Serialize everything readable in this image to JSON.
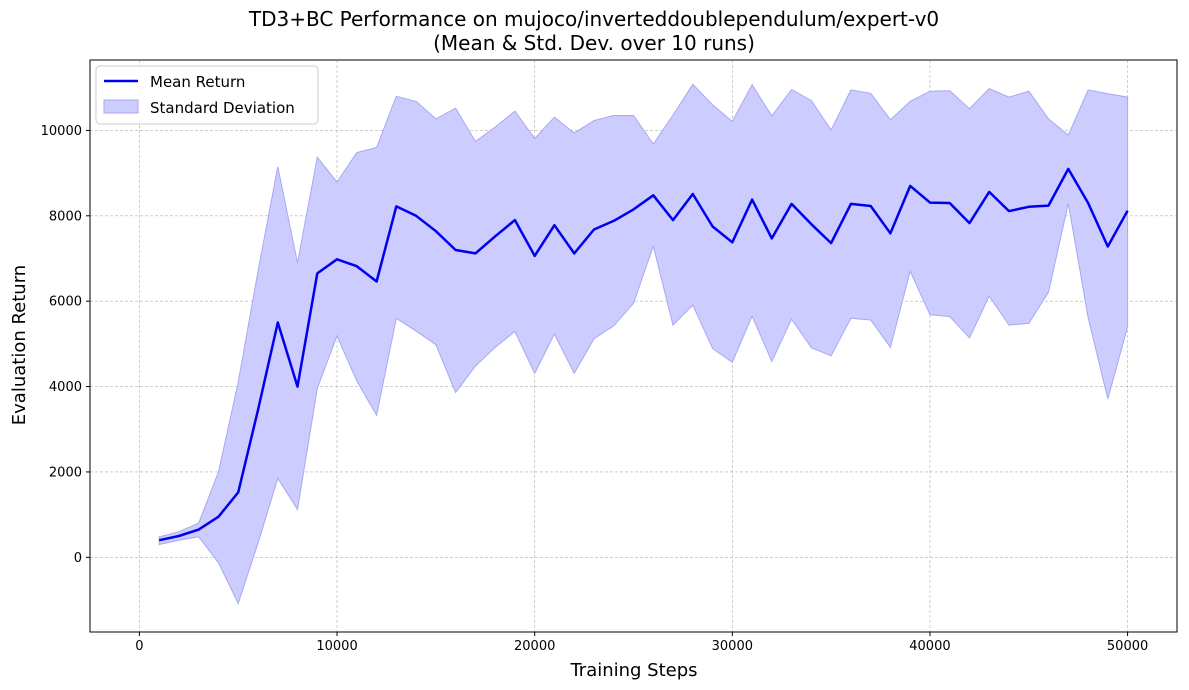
{
  "chart_data": {
    "type": "line",
    "title": "TD3+BC Performance on mujoco/inverteddoublependulum/expert-v0",
    "subtitle": "(Mean & Std. Dev. over 10 runs)",
    "xlabel": "Training Steps",
    "ylabel": "Evaluation Return",
    "xlim": [
      -2500,
      52500
    ],
    "ylim": [
      -1750,
      11650
    ],
    "xticks": [
      0,
      10000,
      20000,
      30000,
      40000,
      50000
    ],
    "yticks": [
      0,
      2000,
      4000,
      6000,
      8000,
      10000
    ],
    "grid": true,
    "legend_position": "top-left",
    "colors": {
      "mean": "#0000ee",
      "band_fill": "#ccccff",
      "band_edge": "#a8a8f0",
      "grid": "#b0b0b0"
    },
    "x": [
      1000,
      2000,
      3000,
      4000,
      5000,
      6000,
      7000,
      8000,
      9000,
      10000,
      11000,
      12000,
      13000,
      14000,
      15000,
      16000,
      17000,
      18000,
      19000,
      20000,
      21000,
      22000,
      23000,
      24000,
      25000,
      26000,
      27000,
      28000,
      29000,
      30000,
      31000,
      32000,
      33000,
      34000,
      35000,
      36000,
      37000,
      38000,
      39000,
      40000,
      41000,
      42000,
      43000,
      44000,
      45000,
      46000,
      47000,
      48000,
      49000,
      50000
    ],
    "series": [
      {
        "name": "Mean Return",
        "values": [
          400,
          500,
          650,
          950,
          1520,
          3450,
          5500,
          4000,
          6650,
          6980,
          6820,
          6460,
          8220,
          8000,
          7640,
          7200,
          7120,
          7520,
          7900,
          7060,
          7780,
          7120,
          7680,
          7880,
          8150,
          8480,
          7900,
          8510,
          7750,
          7380,
          8380,
          7470,
          8280,
          7800,
          7360,
          8280,
          8230,
          7590,
          8700,
          8310,
          8300,
          7830,
          8560,
          8110,
          8210,
          8240,
          9100,
          8300,
          7280,
          8120
        ]
      },
      {
        "name": "Standard Deviation",
        "upper": [
          480,
          600,
          800,
          2000,
          4100,
          6700,
          9150,
          6900,
          9370,
          8790,
          9480,
          9600,
          10800,
          10680,
          10270,
          10520,
          9740,
          10080,
          10450,
          9810,
          10310,
          9940,
          10230,
          10350,
          10350,
          9680,
          10360,
          11080,
          10600,
          10210,
          11070,
          10340,
          10960,
          10700,
          10010,
          10950,
          10870,
          10250,
          10680,
          10920,
          10930,
          10510,
          10980,
          10780,
          10920,
          10270,
          9890,
          10950,
          10860,
          10780
        ],
        "lower": [
          300,
          400,
          480,
          -130,
          -1080,
          330,
          1850,
          1120,
          3960,
          5190,
          4130,
          3330,
          5600,
          5300,
          4980,
          3860,
          4480,
          4920,
          5290,
          4310,
          5230,
          4310,
          5120,
          5420,
          5950,
          7290,
          5440,
          5910,
          4890,
          4570,
          5650,
          4590,
          5580,
          4910,
          4720,
          5600,
          5560,
          4920,
          6700,
          5680,
          5640,
          5140,
          6120,
          5440,
          5480,
          6210,
          8290,
          5620,
          3710,
          5400
        ]
      }
    ]
  }
}
